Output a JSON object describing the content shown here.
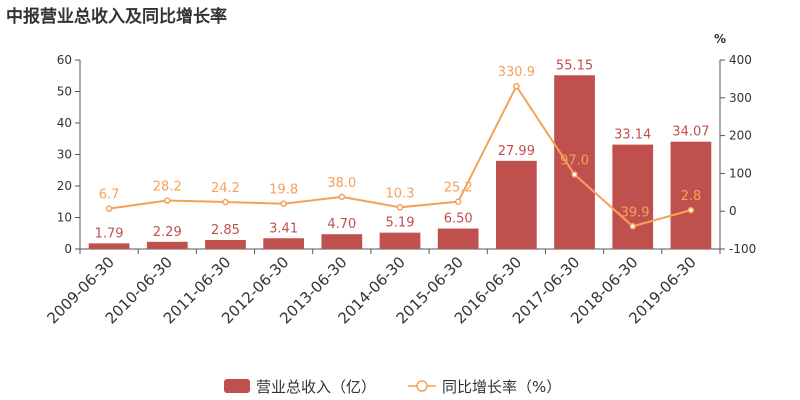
{
  "chart_data": {
    "type": "bar",
    "title": "中报营业总收入及同比增长率",
    "categories": [
      "2009-06-30",
      "2010-06-30",
      "2011-06-30",
      "2012-06-30",
      "2013-06-30",
      "2014-06-30",
      "2015-06-30",
      "2016-06-30",
      "2017-06-30",
      "2018-06-30",
      "2019-06-30"
    ],
    "series": [
      {
        "name": "营业总收入（亿）",
        "type": "bar",
        "axis": "left",
        "color": "#c0504d",
        "values": [
          1.79,
          2.29,
          2.85,
          3.41,
          4.7,
          5.19,
          6.5,
          27.99,
          55.15,
          33.14,
          34.07
        ],
        "labels": [
          "1.79",
          "2.29",
          "2.85",
          "3.41",
          "4.70",
          "5.19",
          "6.50",
          "27.99",
          "55.15",
          "33.14",
          "34.07"
        ]
      },
      {
        "name": "同比增长率（%）",
        "type": "line",
        "axis": "right",
        "color": "#f4a259",
        "values": [
          6.7,
          28.2,
          24.2,
          19.8,
          38.0,
          10.3,
          25.2,
          330.9,
          97.0,
          -39.9,
          2.8
        ],
        "labels": [
          "6.7",
          "28.2",
          "24.2",
          "19.8",
          "38.0",
          "10.3",
          "25.2",
          "330.9",
          "97.0",
          "-39.9",
          "2.8"
        ]
      }
    ],
    "ylim_left": [
      0,
      60
    ],
    "yticks_left": [
      "0",
      "10",
      "20",
      "30",
      "40",
      "50",
      "60"
    ],
    "ylim_right": [
      -100,
      400
    ],
    "yticks_right": [
      "-100",
      "0",
      "100",
      "200",
      "300",
      "400"
    ],
    "ylabel_right": "%",
    "grid": false,
    "legend": "bottom-center"
  }
}
